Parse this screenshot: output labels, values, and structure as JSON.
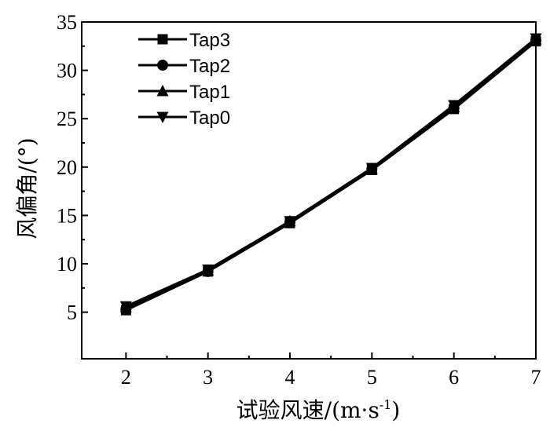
{
  "chart_data": {
    "type": "line",
    "title": "",
    "xlabel": "试验风速/(m·s",
    "xlabel_sup": "-1",
    "xlabel_end": ")",
    "ylabel": "风偏角/(°)",
    "xlim": [
      2,
      7
    ],
    "ylim": [
      0,
      35
    ],
    "xticks": [
      2,
      3,
      4,
      5,
      6,
      7
    ],
    "yticks": [
      5,
      10,
      15,
      20,
      25,
      30,
      35
    ],
    "grid": false,
    "legend": "top-left",
    "x": [
      2,
      3,
      4,
      5,
      6,
      7
    ],
    "series": [
      {
        "name": "Tap3",
        "marker": "square",
        "values": [
          5.2,
          9.2,
          14.2,
          19.7,
          26.0,
          33.0
        ]
      },
      {
        "name": "Tap2",
        "marker": "circle",
        "values": [
          5.3,
          9.2,
          14.3,
          19.8,
          26.1,
          33.1
        ]
      },
      {
        "name": "Tap1",
        "marker": "triangle-up",
        "values": [
          5.5,
          9.3,
          14.4,
          19.8,
          26.2,
          33.2
        ]
      },
      {
        "name": "Tap0",
        "marker": "triangle-down",
        "values": [
          5.6,
          9.4,
          14.4,
          19.9,
          26.4,
          33.3
        ]
      }
    ]
  }
}
